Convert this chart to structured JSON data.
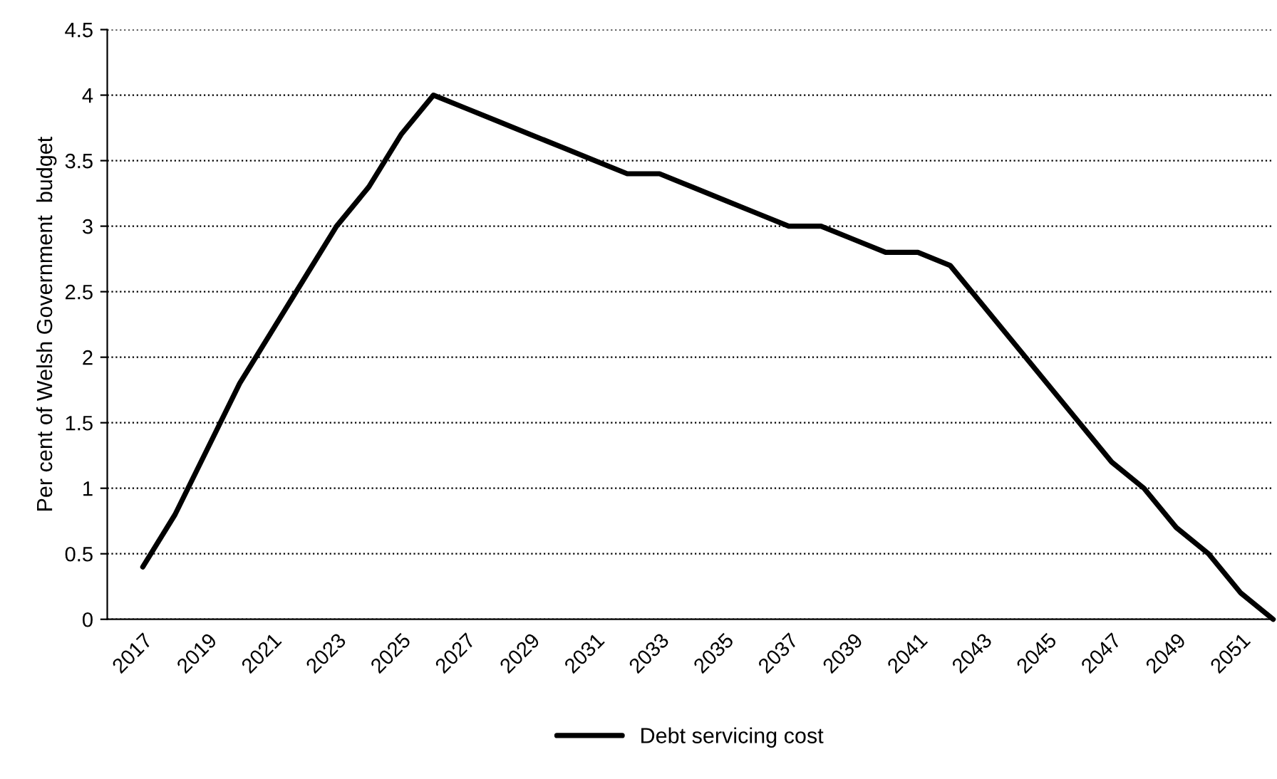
{
  "chart_data": {
    "type": "line",
    "ylabel": "Per cent of Welsh Government  budget",
    "categories": [
      "2017",
      null,
      "2019",
      null,
      "2021",
      null,
      "2023",
      null,
      "2025",
      null,
      "2027",
      null,
      "2029",
      null,
      "2031",
      null,
      "2033",
      null,
      "2035",
      null,
      "2037",
      null,
      "2039",
      null,
      "2041",
      null,
      "2043",
      null,
      "2045",
      null,
      "2047",
      null,
      "2049",
      null,
      "2051",
      null
    ],
    "series": [
      {
        "name": "Debt servicing cost",
        "color": "#000000",
        "values": [
          0.4,
          0.8,
          1.3,
          1.8,
          2.2,
          2.6,
          3.0,
          3.3,
          3.7,
          4.0,
          3.9,
          3.8,
          3.7,
          3.6,
          3.5,
          3.4,
          3.4,
          3.3,
          3.2,
          3.1,
          3.0,
          3.0,
          2.9,
          2.8,
          2.8,
          2.7,
          2.4,
          2.1,
          1.8,
          1.5,
          1.2,
          1.0,
          0.7,
          0.5,
          0.2,
          0.0
        ]
      }
    ],
    "ylim": [
      0,
      4.5
    ],
    "yticks": [
      0,
      0.5,
      1,
      1.5,
      2,
      2.5,
      3,
      3.5,
      4,
      4.5
    ],
    "grid": "y",
    "legend": "bottom",
    "line_style": "solid",
    "marker": "none"
  }
}
